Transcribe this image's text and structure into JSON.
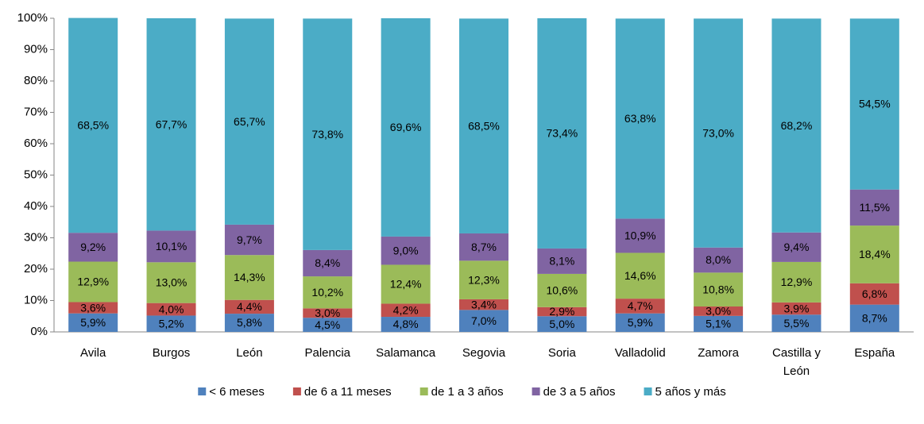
{
  "chart_data": {
    "type": "stacked_bar",
    "categories": [
      "Avila",
      "Burgos",
      "León",
      "Palencia",
      "Salamanca",
      "Segovia",
      "Soria",
      "Valladolid",
      "Zamora",
      "Castilla y León",
      "España"
    ],
    "series": [
      {
        "name": "< 6 meses",
        "color": "#4f81bd",
        "values": [
          5.9,
          5.2,
          5.8,
          4.5,
          4.8,
          7.0,
          5.0,
          5.9,
          5.1,
          5.5,
          8.7
        ],
        "value_labels": [
          "5,9%",
          "5,2%",
          "5,8%",
          "4,5%",
          "4,8%",
          "7,0%",
          "5,0%",
          "5,9%",
          "5,1%",
          "5,5%",
          "8,7%"
        ]
      },
      {
        "name": "de 6 a 11 meses",
        "color": "#c0504d",
        "values": [
          3.6,
          4.0,
          4.4,
          3.0,
          4.2,
          3.4,
          2.9,
          4.7,
          3.0,
          3.9,
          6.8
        ],
        "value_labels": [
          "3,6%",
          "4,0%",
          "4,4%",
          "3,0%",
          "4,2%",
          "3,4%",
          "2,9%",
          "4,7%",
          "3,0%",
          "3,9%",
          "6,8%"
        ]
      },
      {
        "name": "de 1 a 3 años",
        "color": "#9bbb59",
        "values": [
          12.9,
          13.0,
          14.3,
          10.2,
          12.4,
          12.3,
          10.6,
          14.6,
          10.8,
          12.9,
          18.4
        ],
        "value_labels": [
          "12,9%",
          "13,0%",
          "14,3%",
          "10,2%",
          "12,4%",
          "12,3%",
          "10,6%",
          "14,6%",
          "10,8%",
          "12,9%",
          "18,4%"
        ]
      },
      {
        "name": "de 3 a 5 años",
        "color": "#8064a2",
        "values": [
          9.2,
          10.1,
          9.7,
          8.4,
          9.0,
          8.7,
          8.1,
          10.9,
          8.0,
          9.4,
          11.5
        ],
        "value_labels": [
          "9,2%",
          "10,1%",
          "9,7%",
          "8,4%",
          "9,0%",
          "8,7%",
          "8,1%",
          "10,9%",
          "8,0%",
          "9,4%",
          "11,5%"
        ]
      },
      {
        "name": "5 años y más",
        "color": "#4bacc6",
        "values": [
          68.5,
          67.7,
          65.7,
          73.8,
          69.6,
          68.5,
          73.4,
          63.8,
          73.0,
          68.2,
          54.5
        ],
        "value_labels": [
          "68,5%",
          "67,7%",
          "65,7%",
          "73,8%",
          "69,6%",
          "68,5%",
          "73,4%",
          "63,8%",
          "73,0%",
          "68,2%",
          "54,5%"
        ]
      }
    ],
    "ylim": [
      0,
      100
    ],
    "yticks": [
      {
        "value": 0,
        "label": "0%"
      },
      {
        "value": 10,
        "label": "10%"
      },
      {
        "value": 20,
        "label": "20%"
      },
      {
        "value": 30,
        "label": "30%"
      },
      {
        "value": 40,
        "label": "40%"
      },
      {
        "value": 50,
        "label": "50%"
      },
      {
        "value": 60,
        "label": "60%"
      },
      {
        "value": 70,
        "label": "70%"
      },
      {
        "value": 80,
        "label": "80%"
      },
      {
        "value": 90,
        "label": "90%"
      },
      {
        "value": 100,
        "label": "100%"
      }
    ],
    "grid": false,
    "legend": "bottom"
  }
}
